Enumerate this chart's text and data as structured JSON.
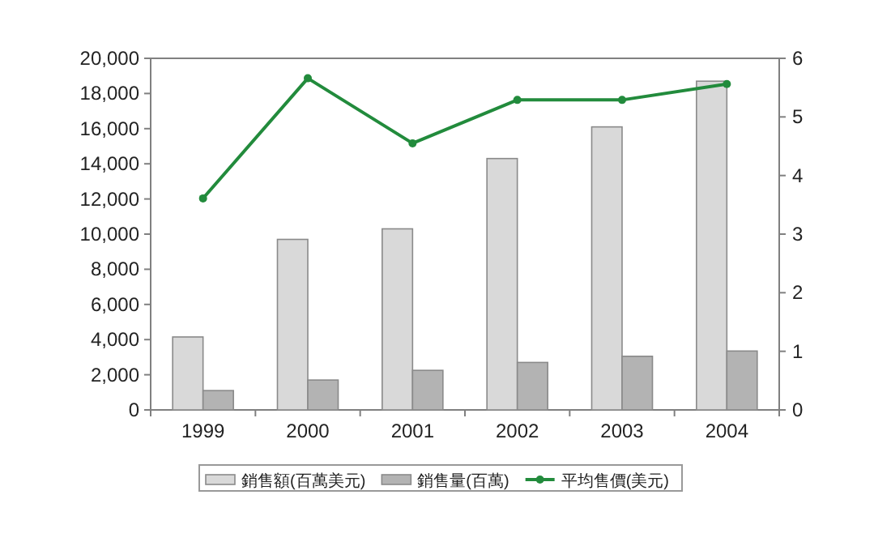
{
  "chart_data": {
    "type": "bar",
    "categories": [
      "1999",
      "2000",
      "2001",
      "2002",
      "2003",
      "2004"
    ],
    "series": [
      {
        "name": "銷售額(百萬美元)",
        "color": "#d9d9d9",
        "values": [
          4150,
          9700,
          10300,
          14300,
          16100,
          18700
        ]
      },
      {
        "name": "銷售量(百萬)",
        "color": "#b3b3b3",
        "values": [
          1100,
          1700,
          2250,
          2700,
          3050,
          3350
        ]
      },
      {
        "name": "平均售價(美元)",
        "type": "line",
        "axis": "y2",
        "color": "#228b3c",
        "values": [
          3.61,
          5.66,
          4.55,
          5.29,
          5.29,
          5.56
        ]
      }
    ],
    "ylim": [
      0,
      20000
    ],
    "yticks": [
      0,
      {
        "value": 2000,
        "label": "2,000"
      },
      {
        "value": 4000,
        "label": "4,000"
      },
      {
        "value": 6000,
        "label": "6,000"
      },
      {
        "value": 8000,
        "label": "8,000"
      },
      {
        "value": 10000,
        "label": "10,000"
      },
      {
        "value": 12000,
        "label": "12,000"
      },
      {
        "value": 14000,
        "label": "14,000"
      },
      {
        "value": 16000,
        "label": "16,000"
      },
      {
        "value": 18000,
        "label": "18,000"
      },
      {
        "value": 20000,
        "label": "20,000"
      }
    ],
    "y2lim": [
      0,
      6
    ],
    "y2ticks": [
      0,
      1,
      2,
      3,
      4,
      5,
      6
    ],
    "legend": "bottom",
    "marker": "circle",
    "line_style": "solid"
  }
}
